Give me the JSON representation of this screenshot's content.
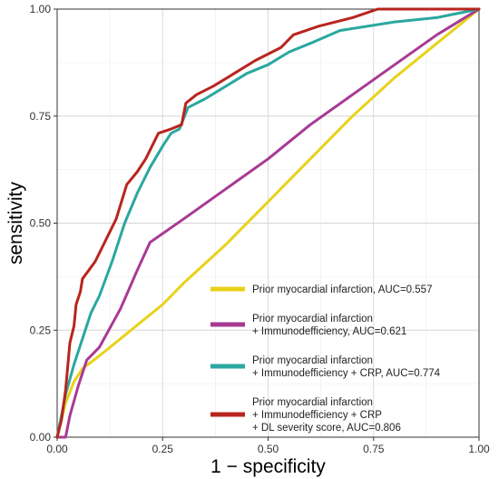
{
  "chart_data": {
    "type": "line",
    "xlabel": "1 − specificity",
    "ylabel": "sensitivity",
    "xlim": [
      0,
      1
    ],
    "ylim": [
      0,
      1
    ],
    "x_ticks": [
      "0.00",
      "0.25",
      "0.50",
      "0.75",
      "1.00"
    ],
    "y_ticks": [
      "0.00",
      "0.25",
      "0.50",
      "0.75",
      "1.00"
    ],
    "grid": true,
    "legend_position": "bottom-right",
    "series": [
      {
        "name_lines": [
          "Prior myocardial infarction, AUC=0.557"
        ],
        "color": "#e8d21a",
        "points": [
          [
            0,
            0
          ],
          [
            0.02,
            0.08
          ],
          [
            0.04,
            0.13
          ],
          [
            0.06,
            0.16
          ],
          [
            0.1,
            0.19
          ],
          [
            0.15,
            0.23
          ],
          [
            0.2,
            0.27
          ],
          [
            0.25,
            0.31
          ],
          [
            0.3,
            0.36
          ],
          [
            0.4,
            0.45
          ],
          [
            0.5,
            0.55
          ],
          [
            0.6,
            0.65
          ],
          [
            0.7,
            0.75
          ],
          [
            0.8,
            0.84
          ],
          [
            0.9,
            0.92
          ],
          [
            1,
            1
          ]
        ]
      },
      {
        "name_lines": [
          "Prior myocardial infarction",
          "+ Immunodefficiency, AUC=0.621"
        ],
        "color": "#a83a94",
        "points": [
          [
            0,
            0
          ],
          [
            0.02,
            0
          ],
          [
            0.03,
            0.05
          ],
          [
            0.05,
            0.12
          ],
          [
            0.07,
            0.18
          ],
          [
            0.1,
            0.21
          ],
          [
            0.15,
            0.3
          ],
          [
            0.19,
            0.39
          ],
          [
            0.22,
            0.455
          ],
          [
            0.3,
            0.51
          ],
          [
            0.4,
            0.58
          ],
          [
            0.5,
            0.65
          ],
          [
            0.6,
            0.73
          ],
          [
            0.7,
            0.8
          ],
          [
            0.8,
            0.87
          ],
          [
            0.9,
            0.94
          ],
          [
            1,
            1
          ]
        ]
      },
      {
        "name_lines": [
          "Prior myocardial infarction",
          "+ Immunodefficiency  + CRP, AUC=0.774"
        ],
        "color": "#2aa8a0",
        "points": [
          [
            0,
            0
          ],
          [
            0.01,
            0.05
          ],
          [
            0.02,
            0.1
          ],
          [
            0.04,
            0.17
          ],
          [
            0.06,
            0.23
          ],
          [
            0.08,
            0.29
          ],
          [
            0.1,
            0.33
          ],
          [
            0.13,
            0.41
          ],
          [
            0.16,
            0.5
          ],
          [
            0.19,
            0.57
          ],
          [
            0.22,
            0.63
          ],
          [
            0.25,
            0.68
          ],
          [
            0.27,
            0.71
          ],
          [
            0.29,
            0.72
          ],
          [
            0.31,
            0.77
          ],
          [
            0.35,
            0.79
          ],
          [
            0.4,
            0.82
          ],
          [
            0.45,
            0.85
          ],
          [
            0.5,
            0.87
          ],
          [
            0.55,
            0.9
          ],
          [
            0.6,
            0.92
          ],
          [
            0.67,
            0.95
          ],
          [
            0.8,
            0.97
          ],
          [
            0.9,
            0.98
          ],
          [
            1,
            1
          ]
        ]
      },
      {
        "name_lines": [
          "Prior myocardial infarction",
          "+ Immunodefficiency  + CRP",
          "+ DL severity score, AUC=0.806"
        ],
        "color": "#b8251e",
        "points": [
          [
            0,
            0
          ],
          [
            0.01,
            0.04
          ],
          [
            0.02,
            0.11
          ],
          [
            0.03,
            0.22
          ],
          [
            0.04,
            0.26
          ],
          [
            0.045,
            0.31
          ],
          [
            0.055,
            0.34
          ],
          [
            0.06,
            0.37
          ],
          [
            0.075,
            0.39
          ],
          [
            0.09,
            0.41
          ],
          [
            0.11,
            0.45
          ],
          [
            0.14,
            0.51
          ],
          [
            0.165,
            0.59
          ],
          [
            0.19,
            0.62
          ],
          [
            0.21,
            0.65
          ],
          [
            0.24,
            0.71
          ],
          [
            0.27,
            0.72
          ],
          [
            0.295,
            0.73
          ],
          [
            0.305,
            0.78
          ],
          [
            0.33,
            0.8
          ],
          [
            0.37,
            0.82
          ],
          [
            0.42,
            0.85
          ],
          [
            0.47,
            0.88
          ],
          [
            0.53,
            0.91
          ],
          [
            0.56,
            0.94
          ],
          [
            0.62,
            0.96
          ],
          [
            0.7,
            0.98
          ],
          [
            0.76,
            1
          ],
          [
            1,
            1
          ]
        ]
      }
    ]
  }
}
